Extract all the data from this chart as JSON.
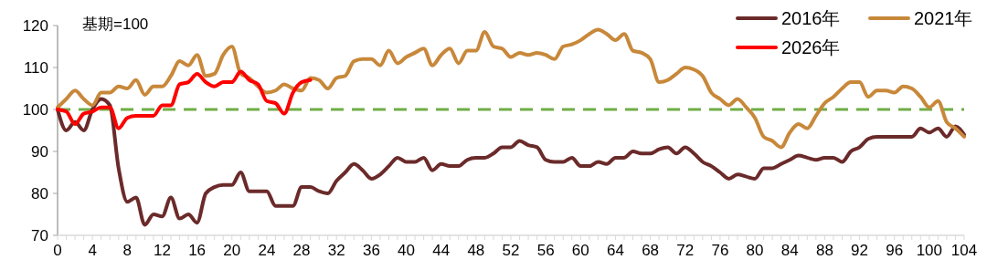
{
  "chart_data": {
    "type": "line",
    "annotations": [
      "基期=100"
    ],
    "x": [
      0,
      1,
      2,
      3,
      4,
      5,
      6,
      7,
      8,
      9,
      10,
      11,
      12,
      13,
      14,
      15,
      16,
      17,
      18,
      19,
      20,
      21,
      22,
      23,
      24,
      25,
      26,
      27,
      28,
      29,
      30,
      31,
      32,
      33,
      34,
      35,
      36,
      37,
      38,
      39,
      40,
      41,
      42,
      43,
      44,
      45,
      46,
      47,
      48,
      49,
      50,
      51,
      52,
      53,
      54,
      55,
      56,
      57,
      58,
      59,
      60,
      61,
      62,
      63,
      64,
      65,
      66,
      67,
      68,
      69,
      70,
      71,
      72,
      73,
      74,
      75,
      76,
      77,
      78,
      79,
      80,
      81,
      82,
      83,
      84,
      85,
      86,
      87,
      88,
      89,
      90,
      91,
      92,
      93,
      94,
      95,
      96,
      97,
      98,
      99,
      100,
      101,
      102,
      103,
      104
    ],
    "xlim": [
      0,
      104
    ],
    "xticks": [
      0,
      {
        "value": 1,
        "label": null
      },
      {
        "value": 2,
        "label": null
      },
      {
        "value": 3,
        "label": null
      },
      4,
      {
        "value": 5,
        "label": null
      },
      {
        "value": 6,
        "label": null
      },
      {
        "value": 7,
        "label": null
      },
      8,
      {
        "value": 9,
        "label": null
      },
      {
        "value": 10,
        "label": null
      },
      {
        "value": 11,
        "label": null
      },
      12,
      {
        "value": 13,
        "label": null
      },
      {
        "value": 14,
        "label": null
      },
      {
        "value": 15,
        "label": null
      },
      16,
      {
        "value": 17,
        "label": null
      },
      {
        "value": 18,
        "label": null
      },
      {
        "value": 19,
        "label": null
      },
      20,
      {
        "value": 21,
        "label": null
      },
      {
        "value": 22,
        "label": null
      },
      {
        "value": 23,
        "label": null
      },
      24,
      {
        "value": 25,
        "label": null
      },
      {
        "value": 26,
        "label": null
      },
      {
        "value": 27,
        "label": null
      },
      28,
      {
        "value": 29,
        "label": null
      },
      {
        "value": 30,
        "label": null
      },
      {
        "value": 31,
        "label": null
      },
      32,
      {
        "value": 33,
        "label": null
      },
      {
        "value": 34,
        "label": null
      },
      {
        "value": 35,
        "label": null
      },
      36,
      {
        "value": 37,
        "label": null
      },
      {
        "value": 38,
        "label": null
      },
      {
        "value": 39,
        "label": null
      },
      40,
      {
        "value": 41,
        "label": null
      },
      {
        "value": 42,
        "label": null
      },
      {
        "value": 43,
        "label": null
      },
      44,
      {
        "value": 45,
        "label": null
      },
      {
        "value": 46,
        "label": null
      },
      {
        "value": 47,
        "label": null
      },
      48,
      {
        "value": 49,
        "label": null
      },
      {
        "value": 50,
        "label": null
      },
      {
        "value": 51,
        "label": null
      },
      52,
      {
        "value": 53,
        "label": null
      },
      {
        "value": 54,
        "label": null
      },
      {
        "value": 55,
        "label": null
      },
      56,
      {
        "value": 57,
        "label": null
      },
      {
        "value": 58,
        "label": null
      },
      {
        "value": 59,
        "label": null
      },
      60,
      {
        "value": 61,
        "label": null
      },
      {
        "value": 62,
        "label": null
      },
      {
        "value": 63,
        "label": null
      },
      64,
      {
        "value": 65,
        "label": null
      },
      {
        "value": 66,
        "label": null
      },
      {
        "value": 67,
        "label": null
      },
      68,
      {
        "value": 69,
        "label": null
      },
      {
        "value": 70,
        "label": null
      },
      {
        "value": 71,
        "label": null
      },
      72,
      {
        "value": 73,
        "label": null
      },
      {
        "value": 74,
        "label": null
      },
      {
        "value": 75,
        "label": null
      },
      76,
      {
        "value": 77,
        "label": null
      },
      {
        "value": 78,
        "label": null
      },
      {
        "value": 79,
        "label": null
      },
      80,
      {
        "value": 81,
        "label": null
      },
      {
        "value": 82,
        "label": null
      },
      {
        "value": 83,
        "label": null
      },
      84,
      {
        "value": 85,
        "label": null
      },
      {
        "value": 86,
        "label": null
      },
      {
        "value": 87,
        "label": null
      },
      88,
      {
        "value": 89,
        "label": null
      },
      {
        "value": 90,
        "label": null
      },
      {
        "value": 91,
        "label": null
      },
      92,
      {
        "value": 93,
        "label": null
      },
      {
        "value": 94,
        "label": null
      },
      {
        "value": 95,
        "label": null
      },
      96,
      {
        "value": 97,
        "label": null
      },
      {
        "value": 98,
        "label": null
      },
      {
        "value": 99,
        "label": null
      },
      100,
      {
        "value": 101,
        "label": null
      },
      {
        "value": 102,
        "label": null
      },
      {
        "value": 103,
        "label": null
      },
      104
    ],
    "ylim": [
      70,
      120
    ],
    "yticks": [
      70,
      80,
      90,
      100,
      110,
      120
    ],
    "grid": false,
    "legend": "top right",
    "line_style": "solid",
    "marker": "none",
    "ref_lines": [
      {
        "axis": "y",
        "value": 100,
        "color": "#70ad47",
        "line_style": "dashed"
      }
    ],
    "series": [
      {
        "name": "2016年",
        "color": "#6b2a2a",
        "values": [
          100,
          95,
          97,
          95,
          100,
          102.5,
          101,
          86,
          78,
          79,
          72.5,
          75,
          74.5,
          79,
          74,
          75,
          73,
          80,
          81.5,
          82,
          82,
          85,
          80.5,
          80.5,
          80.5,
          77,
          77,
          77,
          81.5,
          81.5,
          80.5,
          80,
          83,
          85,
          87,
          85.5,
          83.5,
          84.5,
          86.5,
          88.5,
          87.5,
          87.5,
          88.5,
          85.5,
          87,
          86.5,
          86.5,
          88,
          88.5,
          88.5,
          89.5,
          91,
          91,
          92.5,
          91.5,
          91,
          88,
          87.5,
          87.5,
          88.5,
          86.5,
          86.5,
          87.5,
          87,
          88.5,
          88.5,
          90,
          89.5,
          89.5,
          90.5,
          91,
          89.5,
          91,
          89.5,
          87.5,
          86.5,
          85,
          83.5,
          84.5,
          84,
          83.5,
          86,
          86,
          87,
          88,
          89,
          88.5,
          88,
          88.5,
          88.5,
          87.5,
          90,
          91,
          93,
          93.5,
          93.5,
          93.5,
          93.5,
          93.5,
          95.5,
          94.5,
          95.5,
          93.5,
          96,
          94
        ]
      },
      {
        "name": "2021年",
        "color": "#c8883a",
        "values": [
          100.5,
          102.5,
          104.5,
          102.5,
          101,
          104,
          104,
          105.5,
          105,
          107,
          103.5,
          105.5,
          105.5,
          108,
          111.5,
          110.5,
          113,
          108,
          108.5,
          113,
          115,
          108.5,
          107.5,
          105.5,
          104,
          104.5,
          106,
          105,
          104.5,
          107.5,
          107,
          105,
          107.5,
          108,
          111.5,
          112,
          112,
          110.5,
          114,
          111,
          112.5,
          113.5,
          114.5,
          110.5,
          113,
          114.5,
          111,
          114,
          114,
          118.5,
          115,
          114.5,
          112.5,
          113.5,
          113,
          113.5,
          113,
          112,
          115,
          115.5,
          116.5,
          118,
          119,
          118,
          116.5,
          118,
          114,
          113.5,
          112,
          106.5,
          107,
          108.5,
          110,
          109.5,
          108,
          104,
          102.5,
          101,
          102.5,
          100.5,
          98,
          93.5,
          92.5,
          91,
          94.5,
          96.5,
          95.5,
          98.5,
          101.5,
          103,
          105,
          106.5,
          106.5,
          103,
          104.5,
          104.5,
          104,
          105.5,
          105,
          103,
          100.5,
          102,
          97,
          95.5,
          93.5
        ]
      },
      {
        "name": "2026年",
        "color": "#ff0000",
        "x": [
          0,
          1,
          2,
          3,
          4,
          5,
          6,
          7,
          8,
          9,
          10,
          11,
          12,
          13,
          14,
          15,
          16,
          17,
          18,
          19,
          20,
          21,
          22,
          23,
          24,
          25,
          26,
          27,
          28,
          29
        ],
        "values": [
          100,
          99.5,
          96.5,
          99,
          99.5,
          100.5,
          100.5,
          95.5,
          98,
          98.5,
          98.5,
          98.5,
          101,
          101,
          106,
          106.5,
          108.5,
          106.5,
          105.5,
          106.5,
          106.5,
          109,
          107,
          106,
          102,
          101.5,
          99,
          104,
          106.5,
          107
        ]
      }
    ]
  }
}
